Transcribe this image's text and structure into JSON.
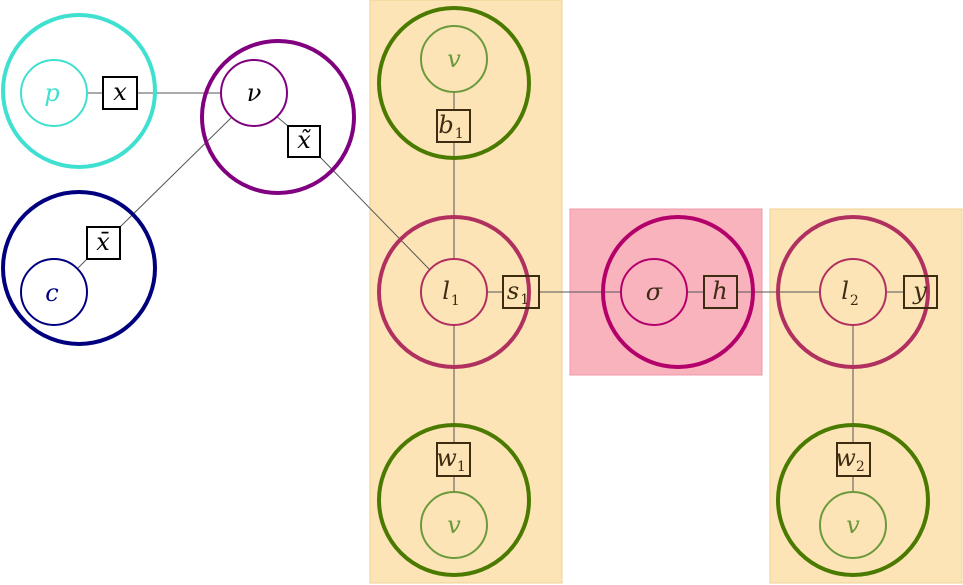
{
  "colors": {
    "turquoise": "#40e0d0",
    "navy": "#00007f",
    "purple": "#800080",
    "olive_green": "#4a7a00",
    "light_green": "#6b9a3c",
    "rose": "#b03060",
    "magenta": "#b3006b",
    "orange_bg": "#fce4b6",
    "pink_bg": "#f9b3bd",
    "edge": "#555555",
    "factor_text": "#3d2b12"
  },
  "nodes": {
    "p": "p",
    "c": "c",
    "nu": "ν",
    "v_top": "v",
    "l1": "l",
    "l1_sub": "1",
    "v_bottom1": "v",
    "sigma": "σ",
    "l2": "l",
    "l2_sub": "2",
    "v_bottom2": "v"
  },
  "factors": {
    "x": "x",
    "x_tilde": "x̃",
    "x_bar": "x̄",
    "b": "b",
    "b_sub": "1",
    "s": "s",
    "s_sub": "1",
    "w1": "w",
    "w1_sub": "1",
    "h": "h",
    "y": "y",
    "w2": "w",
    "w2_sub": "2"
  }
}
